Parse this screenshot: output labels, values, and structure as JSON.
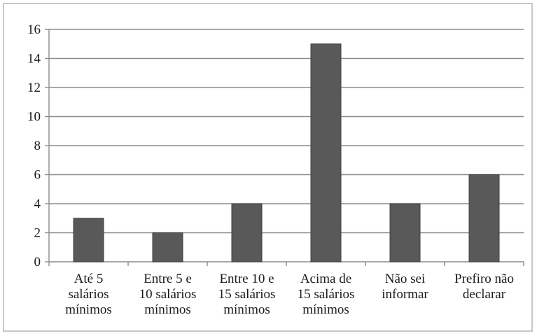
{
  "chart_data": {
    "type": "bar",
    "categories": [
      [
        "Até 5",
        "salários",
        "mínimos"
      ],
      [
        "Entre 5 e",
        "10 salários",
        "mínimos"
      ],
      [
        "Entre 10 e",
        "15 salários",
        "mínimos"
      ],
      [
        "Acima de",
        "15 salários",
        "mínimos"
      ],
      [
        "Não sei",
        "informar"
      ],
      [
        "Prefiro não",
        "declarar"
      ]
    ],
    "values": [
      3,
      2,
      4,
      15,
      4,
      6
    ],
    "ylim": [
      0,
      16
    ],
    "yticks": [
      "0",
      "2",
      "4",
      "6",
      "8",
      "10",
      "12",
      "14",
      "16"
    ],
    "grid": true,
    "legend": "none",
    "colors": {
      "bar": "#595959",
      "grid": "#8c8c8c",
      "axis": "#8c8c8c"
    }
  }
}
